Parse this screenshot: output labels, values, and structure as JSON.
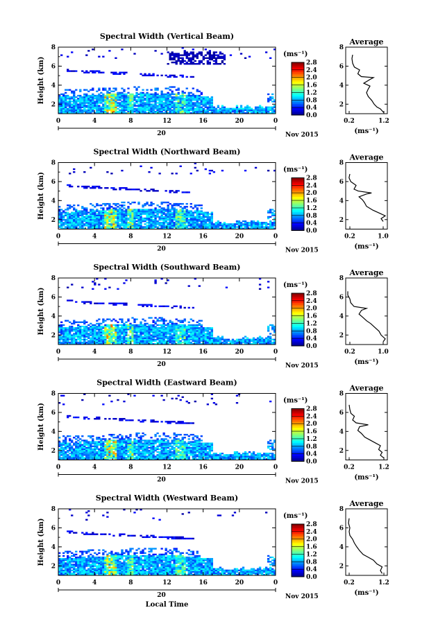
{
  "chart_data": [
    {
      "type": "heatmap",
      "title": "Spectral Width (Vertical Beam)",
      "ylabel": "Height (km)",
      "ylim": [
        1,
        8
      ],
      "yticks": [
        2,
        4,
        6,
        8
      ],
      "xticks": [
        "0",
        "4",
        "8",
        "12",
        "16",
        "20",
        "0"
      ],
      "xlim": [
        0,
        24
      ],
      "date_tick": "20",
      "date_label": "Nov 2015",
      "colorbar": {
        "unit": "(ms⁻¹)",
        "range": [
          0,
          2.8
        ],
        "ticks": [
          "2.8",
          "2.4",
          "2.0",
          "1.6",
          "1.2",
          "0.8",
          "0.4",
          "0.0"
        ]
      },
      "avg": {
        "title": "Average",
        "xlabel": "(ms⁻¹)",
        "xticks": [
          "0.2",
          "1.2"
        ],
        "xlim": [
          0.1,
          1.3
        ],
        "yticks": [
          2,
          4,
          6,
          8
        ],
        "ylim": [
          1,
          8
        ],
        "profile": [
          [
            1.2,
            1.1
          ],
          [
            1.15,
            1.3
          ],
          [
            1.1,
            1.5
          ],
          [
            1.0,
            1.7
          ],
          [
            0.92,
            2.0
          ],
          [
            0.85,
            2.4
          ],
          [
            0.75,
            2.8
          ],
          [
            0.7,
            3.2
          ],
          [
            0.75,
            3.6
          ],
          [
            0.8,
            3.9
          ],
          [
            0.62,
            4.2
          ],
          [
            0.8,
            4.6
          ],
          [
            0.9,
            4.8
          ],
          [
            0.55,
            4.9
          ],
          [
            0.45,
            5.2
          ],
          [
            0.5,
            5.6
          ],
          [
            0.35,
            5.9
          ],
          [
            0.3,
            6.3
          ],
          [
            0.28,
            6.8
          ],
          [
            0.3,
            7.2
          ]
        ]
      }
    },
    {
      "type": "heatmap",
      "title": "Spectral Width (Northward Beam)",
      "ylabel": "Height (km)",
      "ylim": [
        1,
        8
      ],
      "yticks": [
        2,
        4,
        6,
        8
      ],
      "xticks": [
        "0",
        "4",
        "8",
        "12",
        "16",
        "20",
        "0"
      ],
      "xlim": [
        0,
        24
      ],
      "date_tick": "20",
      "date_label": "Nov 2015",
      "colorbar": {
        "unit": "(ms⁻¹)",
        "range": [
          0,
          2.8
        ],
        "ticks": [
          "2.8",
          "2.4",
          "2.0",
          "1.6",
          "1.2",
          "0.8",
          "0.4",
          "0.0"
        ]
      },
      "avg": {
        "title": "Average",
        "xlabel": "(ms⁻¹)",
        "xticks": [
          "0.2",
          "1.0"
        ],
        "xlim": [
          0.1,
          1.1
        ],
        "yticks": [
          2,
          4,
          6,
          8
        ],
        "ylim": [
          1,
          8
        ],
        "profile": [
          [
            1.0,
            1.8
          ],
          [
            0.95,
            2.1
          ],
          [
            1.05,
            2.4
          ],
          [
            0.9,
            2.7
          ],
          [
            0.75,
            3.0
          ],
          [
            0.6,
            3.4
          ],
          [
            0.55,
            3.8
          ],
          [
            0.5,
            4.1
          ],
          [
            0.42,
            4.4
          ],
          [
            0.6,
            4.7
          ],
          [
            0.72,
            4.8
          ],
          [
            0.4,
            5.0
          ],
          [
            0.3,
            5.2
          ],
          [
            0.35,
            5.6
          ],
          [
            0.22,
            6.0
          ],
          [
            0.18,
            6.4
          ],
          [
            0.2,
            6.8
          ]
        ]
      }
    },
    {
      "type": "heatmap",
      "title": "Spectral Width (Southward Beam)",
      "ylabel": "Height (km)",
      "ylim": [
        1,
        8
      ],
      "yticks": [
        2,
        4,
        6,
        8
      ],
      "xticks": [
        "0",
        "4",
        "8",
        "12",
        "16",
        "20",
        "0"
      ],
      "xlim": [
        0,
        24
      ],
      "date_tick": "20",
      "date_label": "Nov 2015",
      "colorbar": {
        "unit": "(ms⁻¹)",
        "range": [
          0,
          2.8
        ],
        "ticks": [
          "2.8",
          "2.4",
          "2.0",
          "1.6",
          "1.2",
          "0.8",
          "0.4",
          "0.0"
        ]
      },
      "avg": {
        "title": "Average",
        "xlabel": "(ms⁻¹)",
        "xticks": [
          "0.2",
          "1.0"
        ],
        "xlim": [
          0.1,
          1.1
        ],
        "yticks": [
          2,
          4,
          6,
          8
        ],
        "ylim": [
          1,
          8
        ],
        "profile": [
          [
            1.0,
            1.3
          ],
          [
            1.05,
            1.6
          ],
          [
            0.95,
            2.0
          ],
          [
            0.9,
            2.4
          ],
          [
            0.8,
            2.8
          ],
          [
            0.7,
            3.2
          ],
          [
            0.6,
            3.5
          ],
          [
            0.5,
            3.9
          ],
          [
            0.42,
            4.2
          ],
          [
            0.48,
            4.6
          ],
          [
            0.6,
            4.8
          ],
          [
            0.3,
            5.0
          ],
          [
            0.22,
            5.4
          ],
          [
            0.2,
            5.8
          ],
          [
            0.15,
            6.2
          ],
          [
            0.15,
            6.6
          ]
        ]
      }
    },
    {
      "type": "heatmap",
      "title": "Spectral Width (Eastward Beam)",
      "ylabel": "Height (km)",
      "ylim": [
        1,
        8
      ],
      "yticks": [
        2,
        4,
        6,
        8
      ],
      "xticks": [
        "0",
        "4",
        "8",
        "12",
        "16",
        "20",
        "0"
      ],
      "xlim": [
        0,
        24
      ],
      "date_tick": "20",
      "date_label": "Nov 2015",
      "colorbar": {
        "unit": "(ms⁻¹)",
        "range": [
          0,
          2.8
        ],
        "ticks": [
          "2.8",
          "2.4",
          "2.0",
          "1.6",
          "1.2",
          "0.8",
          "0.4",
          "0.0"
        ]
      },
      "avg": {
        "title": "Average",
        "xlabel": "(ms⁻¹)",
        "xticks": [
          "0.2",
          "1.2"
        ],
        "xlim": [
          0.1,
          1.3
        ],
        "yticks": [
          2,
          4,
          6,
          8
        ],
        "ylim": [
          1,
          8
        ],
        "profile": [
          [
            1.2,
            1.2
          ],
          [
            1.1,
            1.5
          ],
          [
            1.15,
            1.8
          ],
          [
            1.05,
            2.1
          ],
          [
            1.1,
            2.5
          ],
          [
            0.95,
            2.8
          ],
          [
            0.8,
            3.1
          ],
          [
            0.65,
            3.4
          ],
          [
            0.55,
            3.8
          ],
          [
            0.45,
            4.1
          ],
          [
            0.5,
            4.5
          ],
          [
            0.75,
            4.7
          ],
          [
            0.4,
            4.9
          ],
          [
            0.3,
            5.2
          ],
          [
            0.35,
            5.6
          ],
          [
            0.25,
            5.9
          ],
          [
            0.22,
            6.3
          ],
          [
            0.2,
            6.8
          ]
        ]
      }
    },
    {
      "type": "heatmap",
      "title": "Spectral Width (Westward Beam)",
      "ylabel": "Height (km)",
      "ylim": [
        1,
        8
      ],
      "yticks": [
        2,
        4,
        6,
        8
      ],
      "xticks": [
        "0",
        "4",
        "8",
        "12",
        "16",
        "20",
        "0"
      ],
      "xlim": [
        0,
        24
      ],
      "date_tick": "20",
      "date_label": "Nov 2015",
      "xlabel": "Local Time",
      "colorbar": {
        "unit": "(ms⁻¹)",
        "range": [
          0,
          2.8
        ],
        "ticks": [
          "2.8",
          "2.4",
          "2.0",
          "1.6",
          "1.2",
          "0.8",
          "0.4",
          "0.0"
        ]
      },
      "avg": {
        "title": "Average",
        "xlabel": "(ms⁻¹)",
        "xticks": [
          "0.2",
          "1.2"
        ],
        "xlim": [
          0.1,
          1.3
        ],
        "yticks": [
          2,
          4,
          6,
          8
        ],
        "ylim": [
          1,
          8
        ],
        "profile": [
          [
            1.15,
            1.2
          ],
          [
            1.1,
            1.5
          ],
          [
            1.15,
            1.9
          ],
          [
            1.0,
            2.2
          ],
          [
            0.9,
            2.6
          ],
          [
            0.75,
            2.9
          ],
          [
            0.6,
            3.2
          ],
          [
            0.5,
            3.6
          ],
          [
            0.42,
            4.0
          ],
          [
            0.35,
            4.4
          ],
          [
            0.3,
            4.8
          ],
          [
            0.22,
            5.2
          ],
          [
            0.2,
            5.6
          ],
          [
            0.22,
            6.0
          ],
          [
            0.18,
            6.5
          ],
          [
            0.2,
            7.0
          ]
        ]
      }
    }
  ]
}
